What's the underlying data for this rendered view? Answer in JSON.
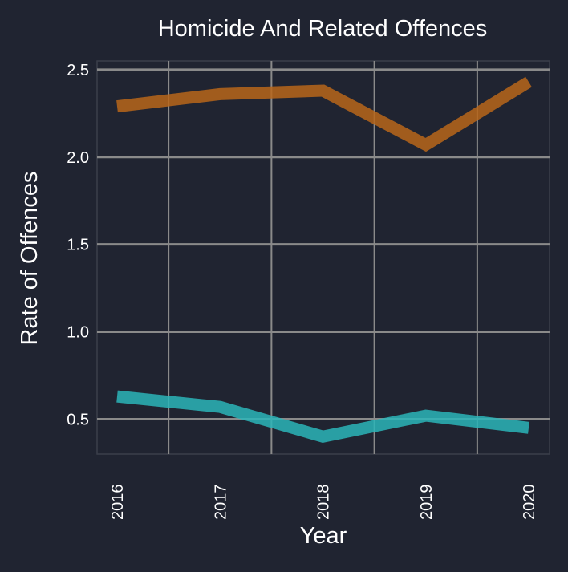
{
  "chart_data": {
    "type": "line",
    "title": "Homicide And Related Offences",
    "xlabel": "Year",
    "ylabel": "Rate of Offences",
    "categories": [
      "2016",
      "2017",
      "2018",
      "2019",
      "2020"
    ],
    "y_ticks": [
      "0.5",
      "1.0",
      "1.5",
      "2.0",
      "2.5"
    ],
    "ylim": [
      0.3,
      2.55
    ],
    "grid": true,
    "legend": "none",
    "series": [
      {
        "values": [
          2.29,
          2.36,
          2.38,
          2.07,
          2.43
        ],
        "color": "#b8661a"
      },
      {
        "values": [
          0.63,
          0.57,
          0.4,
          0.52,
          0.45
        ],
        "color": "#2bb5b9"
      }
    ]
  },
  "colors": {
    "background": "#202431",
    "grid": "#8a8a8a",
    "text": "#ffffff"
  }
}
